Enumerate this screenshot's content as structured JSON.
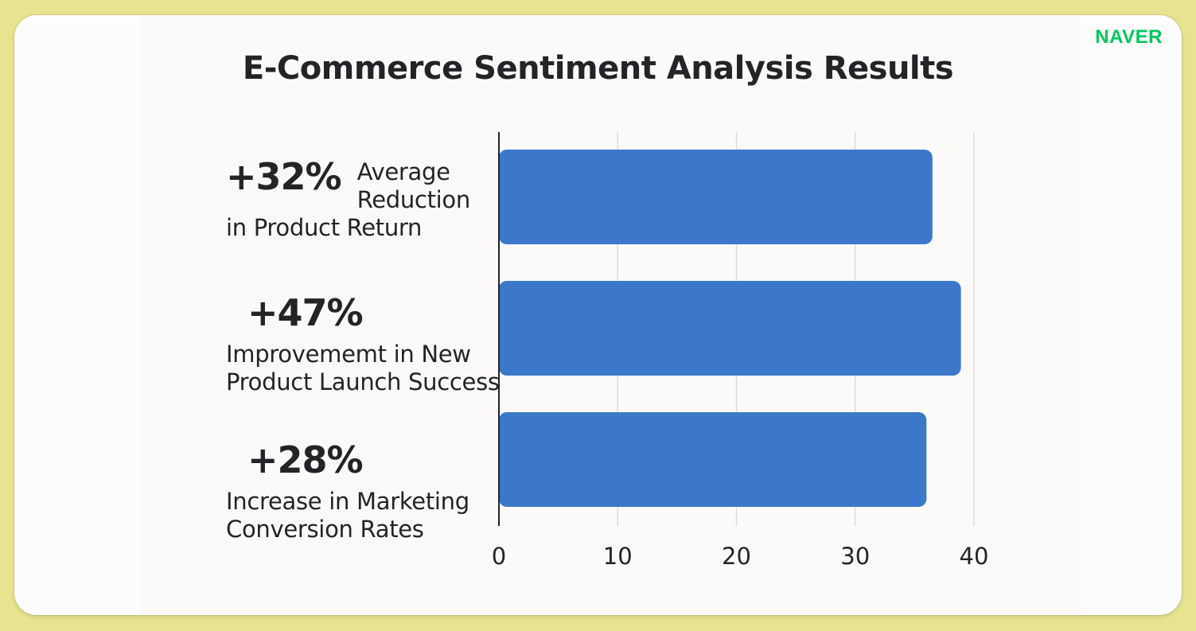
{
  "brand": "NAVER",
  "chart_data": {
    "type": "bar",
    "orientation": "horizontal",
    "title": "E-Commerce Sentiment Analysis Results",
    "categories": [
      {
        "percent": "+32%",
        "description": "Average Reduction in Product Return"
      },
      {
        "percent": "+47%",
        "description": "Improvememt in New Product Launch Success"
      },
      {
        "percent": "+28%",
        "description": "Increase in Marketing Conversion Rates"
      }
    ],
    "values": [
      36.5,
      38.9,
      36.0
    ],
    "xlim": [
      0,
      40
    ],
    "xticks": [
      "0",
      "10",
      "20",
      "30",
      "40"
    ],
    "grid": true,
    "bar_color": "#3b78c9"
  }
}
